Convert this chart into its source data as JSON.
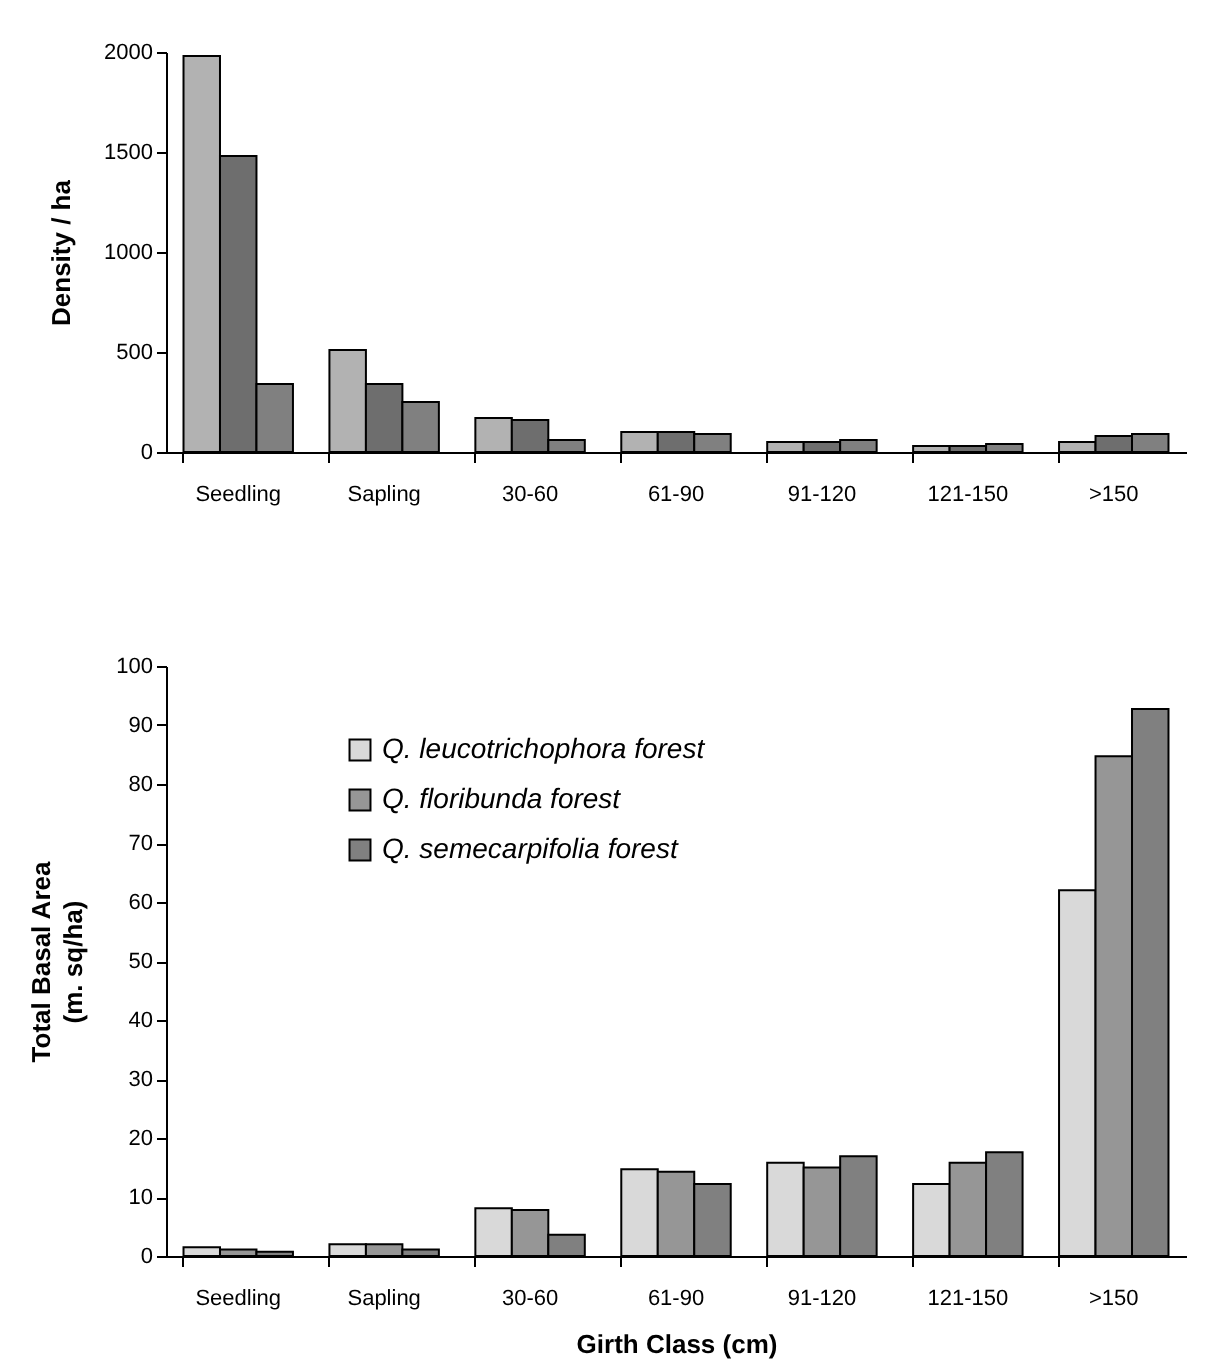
{
  "chart_data": [
    {
      "type": "bar",
      "ylabel": "Density / ha",
      "categories": [
        "Seedling",
        "Sapling",
        "30-60",
        "61-90",
        "91-120",
        "121-150",
        ">150"
      ],
      "series": [
        {
          "color": "#b2b2b2",
          "values": [
            1980,
            510,
            170,
            100,
            50,
            30,
            50
          ]
        },
        {
          "color": "#6e6e6e",
          "values": [
            1480,
            340,
            160,
            100,
            50,
            30,
            80
          ]
        },
        {
          "color": "#808080",
          "values": [
            340,
            250,
            60,
            90,
            60,
            40,
            90
          ]
        }
      ],
      "ylim": [
        0,
        2000
      ],
      "yticks": [
        0,
        500,
        1000,
        1500,
        2000
      ],
      "grid": false,
      "legend": false
    },
    {
      "type": "bar",
      "xlabel": "Girth Class (cm)",
      "ylabel": "Total Basal Area\n(m. sq/ha)",
      "categories": [
        "Seedling",
        "Sapling",
        "30-60",
        "61-90",
        "91-120",
        "121-150",
        ">150"
      ],
      "series": [
        {
          "name": "Q. leucotrichophora forest",
          "color": "#d9d9d9",
          "values": [
            1.5,
            2,
            8.1,
            14.7,
            15.8,
            12.2,
            62
          ]
        },
        {
          "name": "Q. floribunda forest",
          "color": "#969696",
          "values": [
            1.1,
            2,
            7.8,
            14.3,
            15,
            15.8,
            84.7
          ]
        },
        {
          "name": "Q. semecarpifolia forest",
          "color": "#808080",
          "values": [
            0.7,
            1.1,
            3.6,
            12.2,
            16.9,
            17.6,
            92.7
          ]
        }
      ],
      "ylim": [
        0,
        100
      ],
      "yticks": [
        0,
        10,
        20,
        30,
        40,
        50,
        60,
        70,
        80,
        90,
        100
      ],
      "grid": false,
      "legend": "top left"
    }
  ]
}
